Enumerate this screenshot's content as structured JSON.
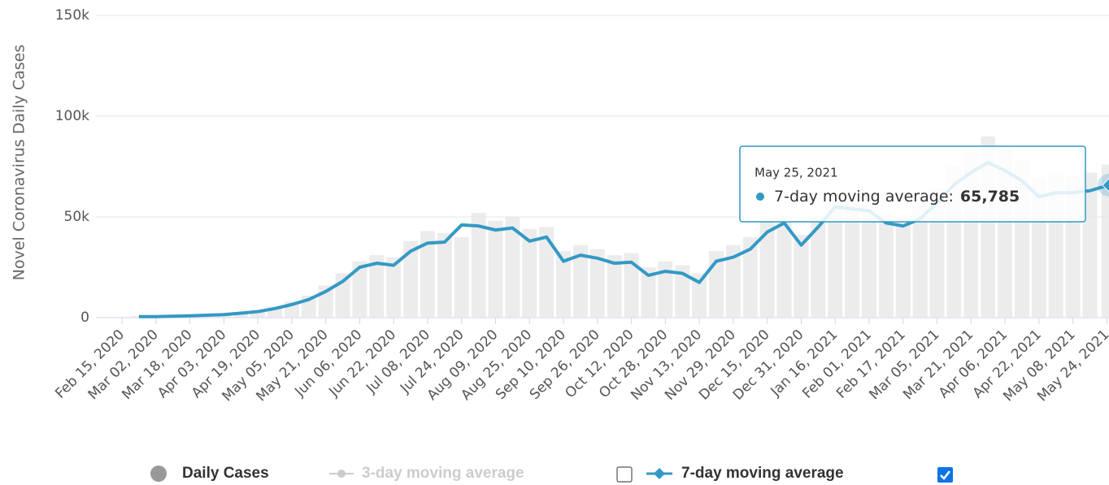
{
  "chart_data": {
    "type": "line",
    "y_axis_label": "Novel Coronavirus Daily Cases",
    "ylim": [
      0,
      150000
    ],
    "yticks": [
      0,
      {
        "value": 50000,
        "label": "50k"
      },
      {
        "value": 100000,
        "label": "100k"
      },
      {
        "value": 150000,
        "label": "150k"
      }
    ],
    "xlim": [
      "Feb 15, 2020",
      "May 25, 2021"
    ],
    "xticks": [
      "Feb 15, 2020",
      "Mar 02, 2020",
      "Mar 18, 2020",
      "Apr 03, 2020",
      "Apr 19, 2020",
      "May 05, 2020",
      "May 21, 2020",
      "Jun 06, 2020",
      "Jun 22, 2020",
      "Jul 08, 2020",
      "Jul 24, 2020",
      "Aug 09, 2020",
      "Aug 25, 2020",
      "Sep 10, 2020",
      "Sep 26, 2020",
      "Oct 12, 2020",
      "Oct 28, 2020",
      "Nov 13, 2020",
      "Nov 29, 2020",
      "Dec 15, 2020",
      "Dec 31, 2020",
      "Jan 16, 2021",
      "Feb 01, 2021",
      "Feb 17, 2021",
      "Mar 05, 2021",
      "Mar 21, 2021",
      "Apr 06, 2021",
      "Apr 22, 2021",
      "May 08, 2021",
      "May 24, 2021"
    ],
    "grid": true,
    "x": [
      "Feb 23, 2020",
      "Mar 02, 2020",
      "Mar 10, 2020",
      "Mar 18, 2020",
      "Mar 26, 2020",
      "Apr 03, 2020",
      "Apr 11, 2020",
      "Apr 19, 2020",
      "Apr 27, 2020",
      "May 05, 2020",
      "May 13, 2020",
      "May 21, 2020",
      "May 29, 2020",
      "Jun 06, 2020",
      "Jun 14, 2020",
      "Jun 22, 2020",
      "Jun 30, 2020",
      "Jul 08, 2020",
      "Jul 16, 2020",
      "Jul 24, 2020",
      "Aug 01, 2020",
      "Aug 09, 2020",
      "Aug 17, 2020",
      "Aug 25, 2020",
      "Sep 02, 2020",
      "Sep 10, 2020",
      "Sep 18, 2020",
      "Sep 26, 2020",
      "Oct 04, 2020",
      "Oct 12, 2020",
      "Oct 20, 2020",
      "Oct 28, 2020",
      "Nov 05, 2020",
      "Nov 13, 2020",
      "Nov 21, 2020",
      "Nov 29, 2020",
      "Dec 07, 2020",
      "Dec 15, 2020",
      "Dec 23, 2020",
      "Dec 31, 2020",
      "Jan 08, 2021",
      "Jan 16, 2021",
      "Jan 24, 2021",
      "Feb 01, 2021",
      "Feb 09, 2021",
      "Feb 17, 2021",
      "Feb 25, 2021",
      "Mar 05, 2021",
      "Mar 13, 2021",
      "Mar 21, 2021",
      "Mar 29, 2021",
      "Apr 06, 2021",
      "Apr 14, 2021",
      "Apr 22, 2021",
      "Apr 30, 2021",
      "May 08, 2021",
      "May 16, 2021",
      "May 25, 2021"
    ],
    "series": [
      {
        "name": "Daily Cases",
        "color": "#e6e6e6",
        "kind": "column",
        "values": [
          800,
          700,
          1000,
          1300,
          1600,
          2000,
          2800,
          3800,
          5500,
          8000,
          11000,
          16000,
          22000,
          28000,
          31000,
          30000,
          38000,
          43000,
          42000,
          40000,
          52000,
          48000,
          50000,
          44000,
          45000,
          33000,
          36000,
          34000,
          31000,
          32000,
          25000,
          28000,
          26000,
          22000,
          33000,
          36000,
          40000,
          48000,
          50000,
          41000,
          50000,
          60000,
          58000,
          57000,
          52000,
          50000,
          56000,
          64000,
          75000,
          82000,
          90000,
          84000,
          78000,
          69000,
          72000,
          70000,
          72000,
          76000
        ]
      },
      {
        "name": "3-day moving average",
        "color": "#cccccc",
        "kind": "line",
        "visible": false
      },
      {
        "name": "7-day moving average",
        "color": "#3399c4",
        "kind": "line",
        "values": [
          500,
          500,
          700,
          900,
          1200,
          1500,
          2200,
          3000,
          4500,
          6500,
          9000,
          13000,
          18000,
          25000,
          27000,
          26000,
          33000,
          37000,
          37500,
          46000,
          45500,
          43500,
          44500,
          38000,
          40000,
          28000,
          31000,
          29500,
          27000,
          27500,
          21000,
          23000,
          22000,
          17500,
          28000,
          30000,
          34000,
          42500,
          47000,
          36000,
          45000,
          55000,
          54000,
          53000,
          47000,
          45500,
          49000,
          57000,
          66000,
          72000,
          77000,
          73000,
          68000,
          60000,
          62000,
          62000,
          63000,
          65785
        ]
      }
    ],
    "tooltip": {
      "date": "May 25, 2021",
      "label": "7-day moving average:",
      "value": 65785,
      "value_label": "65,785"
    }
  }
}
